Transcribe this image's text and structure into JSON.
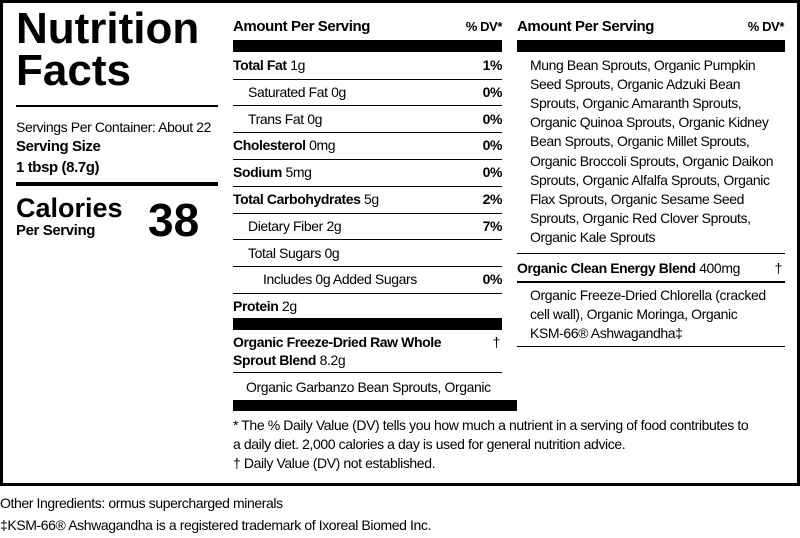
{
  "header": {
    "title": "Nutrition Facts"
  },
  "servings": {
    "per_container": "Servings Per Container: About 22",
    "size_label": "Serving Size",
    "size": "1 tbsp (8.7g)"
  },
  "calories": {
    "label": "Calories",
    "sublabel": "Per Serving",
    "value": 38
  },
  "middle": {
    "header": {
      "left": "Amount Per Serving",
      "right": "% DV*"
    },
    "rows": [
      {
        "name": "Total Fat",
        "amount": "1g",
        "dv": "1%",
        "bold": true,
        "indent": 0
      },
      {
        "name": "Saturated Fat",
        "amount": "0g",
        "dv": "0%",
        "bold": false,
        "indent": 1
      },
      {
        "name": "Trans Fat",
        "amount": "0g",
        "dv": "0%",
        "bold": false,
        "indent": 1
      },
      {
        "name": "Cholesterol",
        "amount": "0mg",
        "dv": "0%",
        "bold": true,
        "indent": 0
      },
      {
        "name": "Sodium",
        "amount": "5mg",
        "dv": "0%",
        "bold": true,
        "indent": 0
      },
      {
        "name": "Total Carbohydrates",
        "amount": "5g",
        "dv": "2%",
        "bold": true,
        "indent": 0
      },
      {
        "name": "Dietary Fiber",
        "amount": "2g",
        "dv": "7%",
        "bold": false,
        "indent": 1
      },
      {
        "name": "Total Sugars",
        "amount": "0g",
        "bold": false,
        "indent": 1
      },
      {
        "name": "Includes 0g Added Sugars",
        "dv": "0%",
        "bold": false,
        "indent": 2
      },
      {
        "name": "Protein",
        "amount": "2g",
        "bold": true,
        "indent": 0
      }
    ],
    "blend": {
      "name": "Organic Freeze-Dried Raw Whole Sprout Blend",
      "amount": "8.2g",
      "dv": "†",
      "lines": [
        "Organic Garbanzo Bean Sprouts, Organic"
      ]
    }
  },
  "right": {
    "header": {
      "left": "Amount Per Serving",
      "right": "% DV*"
    },
    "sprout_lines": [
      "Mung Bean Sprouts, Organic Pumpkin",
      "Seed Sprouts, Organic Adzuki Bean",
      "Sprouts, Organic Amaranth Sprouts,",
      "Organic Quinoa Sprouts, Organic Kidney",
      "Bean Sprouts, Organic Millet Sprouts,",
      "Organic Broccoli Sprouts, Organic Daikon",
      "Sprouts, Organic Alfalfa Sprouts, Organic",
      "Flax Sprouts, Organic Sesame Seed",
      "Sprouts, Organic Red Clover Sprouts,",
      "Organic Kale Sprouts"
    ],
    "blend": {
      "name": "Organic Clean Energy Blend",
      "amount": "400mg",
      "dv": "†",
      "lines": [
        "Organic Freeze-Dried Chlorella (cracked",
        "cell wall), Organic Moringa, Organic",
        "KSM-66® Ashwagandha‡"
      ]
    }
  },
  "footnote": [
    "* The % Daily Value (DV) tells you how much a nutrient in a serving of food contributes to",
    "a daily diet. 2,000 calories a day is used for general nutrition advice.",
    "† Daily Value (DV) not established."
  ],
  "other_ingredients": "Other Ingredients: ormus supercharged minerals",
  "trademark": "‡KSM-66® Ashwagandha is a registered trademark of Ixoreal Biomed Inc."
}
